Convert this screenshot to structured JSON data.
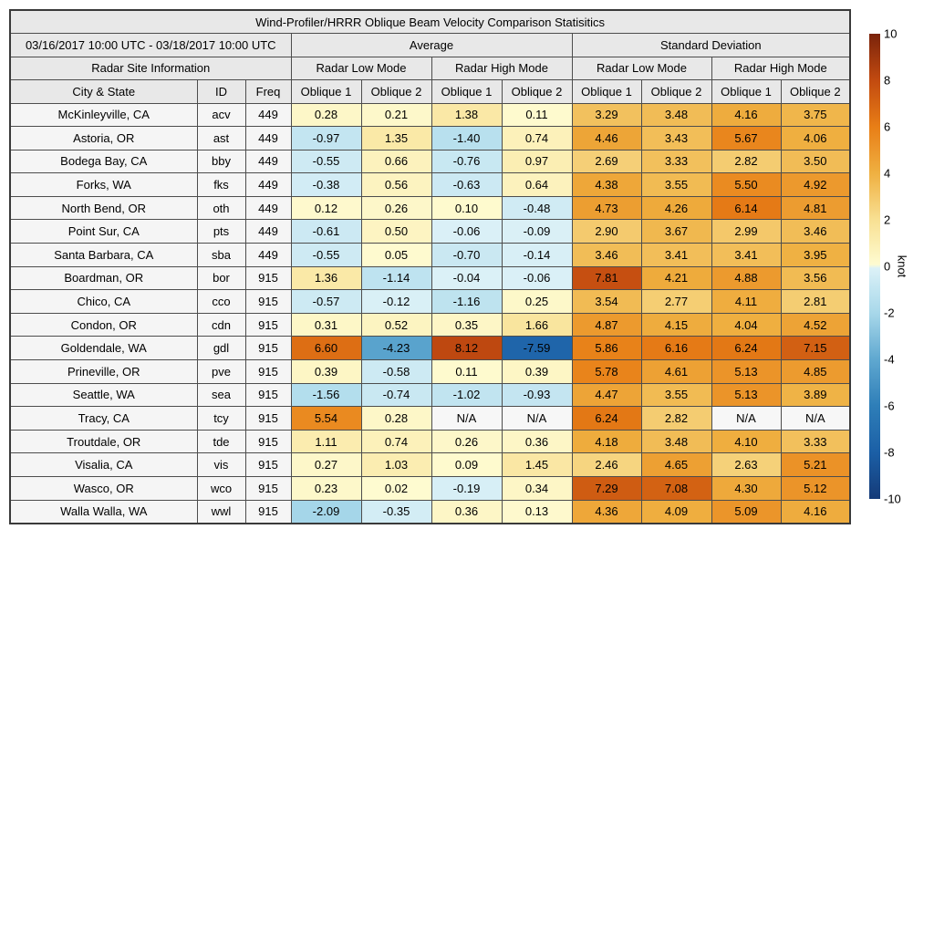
{
  "chart_data": {
    "type": "heatmap",
    "title": "Wind-Profiler/HRRR Oblique Beam Velocity Comparison Statisitics",
    "date_range": "03/16/2017 10:00 UTC - 03/18/2017 10:00 UTC",
    "group_headers": [
      "Average",
      "Standard Deviation"
    ],
    "site_info_header": "Radar Site Information",
    "mode_headers": [
      "Radar Low Mode",
      "Radar High Mode",
      "Radar Low Mode",
      "Radar High Mode"
    ],
    "column_headers": [
      "City & State",
      "ID",
      "Freq"
    ],
    "oblique_headers": [
      "Oblique 1",
      "Oblique 2",
      "Oblique 1",
      "Oblique 2",
      "Oblique 1",
      "Oblique 2",
      "Oblique 1",
      "Oblique 2"
    ],
    "na_text": "N/A",
    "rows": [
      {
        "city": "McKinleyville, CA",
        "id": "acv",
        "freq": "449",
        "values": [
          "0.28",
          "0.21",
          "1.38",
          "0.11",
          "3.29",
          "3.48",
          "4.16",
          "3.75"
        ]
      },
      {
        "city": "Astoria, OR",
        "id": "ast",
        "freq": "449",
        "values": [
          "-0.97",
          "1.35",
          "-1.40",
          "0.74",
          "4.46",
          "3.43",
          "5.67",
          "4.06"
        ]
      },
      {
        "city": "Bodega Bay, CA",
        "id": "bby",
        "freq": "449",
        "values": [
          "-0.55",
          "0.66",
          "-0.76",
          "0.97",
          "2.69",
          "3.33",
          "2.82",
          "3.50"
        ]
      },
      {
        "city": "Forks, WA",
        "id": "fks",
        "freq": "449",
        "values": [
          "-0.38",
          "0.56",
          "-0.63",
          "0.64",
          "4.38",
          "3.55",
          "5.50",
          "4.92"
        ]
      },
      {
        "city": "North Bend, OR",
        "id": "oth",
        "freq": "449",
        "values": [
          "0.12",
          "0.26",
          "0.10",
          "-0.48",
          "4.73",
          "4.26",
          "6.14",
          "4.81"
        ]
      },
      {
        "city": "Point Sur, CA",
        "id": "pts",
        "freq": "449",
        "values": [
          "-0.61",
          "0.50",
          "-0.06",
          "-0.09",
          "2.90",
          "3.67",
          "2.99",
          "3.46"
        ]
      },
      {
        "city": "Santa Barbara, CA",
        "id": "sba",
        "freq": "449",
        "values": [
          "-0.55",
          "0.05",
          "-0.70",
          "-0.14",
          "3.46",
          "3.41",
          "3.41",
          "3.95"
        ]
      },
      {
        "city": "Boardman, OR",
        "id": "bor",
        "freq": "915",
        "values": [
          "1.36",
          "-1.14",
          "-0.04",
          "-0.06",
          "7.81",
          "4.21",
          "4.88",
          "3.56"
        ]
      },
      {
        "city": "Chico, CA",
        "id": "cco",
        "freq": "915",
        "values": [
          "-0.57",
          "-0.12",
          "-1.16",
          "0.25",
          "3.54",
          "2.77",
          "4.11",
          "2.81"
        ]
      },
      {
        "city": "Condon, OR",
        "id": "cdn",
        "freq": "915",
        "values": [
          "0.31",
          "0.52",
          "0.35",
          "1.66",
          "4.87",
          "4.15",
          "4.04",
          "4.52"
        ]
      },
      {
        "city": "Goldendale, WA",
        "id": "gdl",
        "freq": "915",
        "values": [
          "6.60",
          "-4.23",
          "8.12",
          "-7.59",
          "5.86",
          "6.16",
          "6.24",
          "7.15"
        ]
      },
      {
        "city": "Prineville, OR",
        "id": "pve",
        "freq": "915",
        "values": [
          "0.39",
          "-0.58",
          "0.11",
          "0.39",
          "5.78",
          "4.61",
          "5.13",
          "4.85"
        ]
      },
      {
        "city": "Seattle, WA",
        "id": "sea",
        "freq": "915",
        "values": [
          "-1.56",
          "-0.74",
          "-1.02",
          "-0.93",
          "4.47",
          "3.55",
          "5.13",
          "3.89"
        ]
      },
      {
        "city": "Tracy, CA",
        "id": "tcy",
        "freq": "915",
        "values": [
          "5.54",
          "0.28",
          "N/A",
          "N/A",
          "6.24",
          "2.82",
          "N/A",
          "N/A"
        ]
      },
      {
        "city": "Troutdale, OR",
        "id": "tde",
        "freq": "915",
        "values": [
          "1.11",
          "0.74",
          "0.26",
          "0.36",
          "4.18",
          "3.48",
          "4.10",
          "3.33"
        ]
      },
      {
        "city": "Visalia, CA",
        "id": "vis",
        "freq": "915",
        "values": [
          "0.27",
          "1.03",
          "0.09",
          "1.45",
          "2.46",
          "4.65",
          "2.63",
          "5.21"
        ]
      },
      {
        "city": "Wasco, OR",
        "id": "wco",
        "freq": "915",
        "values": [
          "0.23",
          "0.02",
          "-0.19",
          "0.34",
          "7.29",
          "7.08",
          "4.30",
          "5.12"
        ]
      },
      {
        "city": "Walla Walla, WA",
        "id": "wwl",
        "freq": "915",
        "values": [
          "-2.09",
          "-0.35",
          "0.36",
          "0.13",
          "4.36",
          "4.09",
          "5.09",
          "4.16"
        ]
      }
    ],
    "colorbar": {
      "label": "knot",
      "min": -10,
      "max": 10,
      "ticks": [
        10,
        8,
        6,
        4,
        2,
        0,
        -2,
        -4,
        -6,
        -8,
        -10
      ],
      "stops_positive": [
        [
          0,
          "#FEFBD1"
        ],
        [
          2,
          "#F8E093"
        ],
        [
          4,
          "#EFB041"
        ],
        [
          6,
          "#E87E16"
        ],
        [
          8,
          "#C24A10"
        ],
        [
          10,
          "#7A230B"
        ]
      ],
      "stops_negative": [
        [
          0,
          "#DCF1F7"
        ],
        [
          2,
          "#A8D8EA"
        ],
        [
          4,
          "#5FA8D0"
        ],
        [
          6,
          "#2E7EB8"
        ],
        [
          8,
          "#1B5FA6"
        ],
        [
          10,
          "#143A78"
        ]
      ]
    },
    "colors": {
      "na_cell": "#f7f7f7",
      "label_cell": "#f5f5f5",
      "header_cell": "#e8e8e8",
      "grid": "#4d4d4d"
    }
  }
}
